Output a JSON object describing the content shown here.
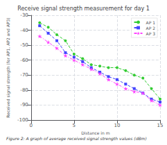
{
  "chart_data": {
    "type": "line",
    "title": "Receive signal strength measurement for day 1",
    "x_label": "Distance in m",
    "y_label": "Received signal strength (for AP1, AP2 and AP3)",
    "caption": "Figure 2: A graph of average received signal strength values (dBm)",
    "x": [
      1,
      2,
      3,
      4,
      5,
      6,
      7,
      8,
      9,
      10,
      11,
      12,
      13,
      14,
      15
    ],
    "series": [
      {
        "name": "AP 1",
        "color": "#33cc33",
        "marker": "circle",
        "line_style": "dashed",
        "values": [
          -35,
          -38,
          -43,
          -47,
          -56,
          -59,
          -63,
          -64,
          -65,
          -65,
          -67,
          -70,
          -72,
          -79,
          -86
        ]
      },
      {
        "name": "AP 2",
        "color": "#4444ff",
        "marker": "square",
        "line_style": "dashed",
        "values": [
          -37,
          -42,
          -47,
          -55,
          -58,
          -61,
          -65,
          -68,
          -71,
          -73,
          -76,
          -79,
          -82,
          -86,
          -88
        ]
      },
      {
        "name": "AP 3",
        "color": "#ff44ff",
        "marker": "star",
        "line_style": "dashdot",
        "values": [
          -44,
          -48,
          -52,
          -57,
          -60,
          -63,
          -66,
          -69,
          -73,
          -76,
          -79,
          -81,
          -82,
          -87,
          -90
        ]
      }
    ],
    "xlim": [
      0,
      15
    ],
    "xticks": [
      0,
      5,
      10,
      15
    ],
    "ylim": [
      -100,
      -30
    ],
    "yticks": [
      -100,
      -90,
      -80,
      -70,
      -60,
      -50,
      -40,
      -30
    ],
    "grid": true,
    "legend": "upper right"
  }
}
